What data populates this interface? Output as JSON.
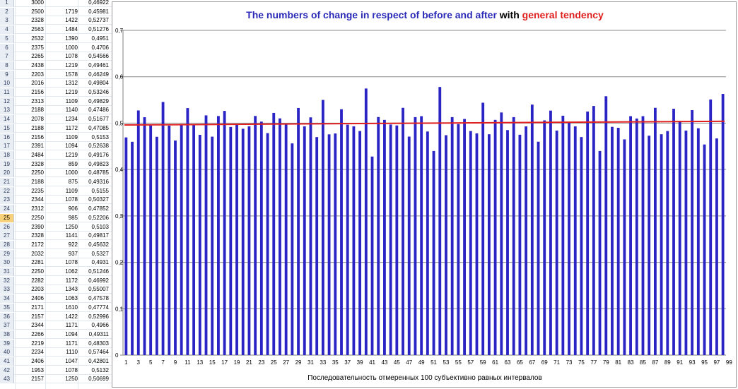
{
  "sheet": {
    "selected_row": "25",
    "rows": [
      {
        "n": "1",
        "a": "3000",
        "b": "",
        "c": "0,46922"
      },
      {
        "n": "2",
        "a": "2500",
        "b": "1719",
        "c": "0,45981"
      },
      {
        "n": "3",
        "a": "2328",
        "b": "1422",
        "c": "0,52737"
      },
      {
        "n": "4",
        "a": "2563",
        "b": "1484",
        "c": "0,51276"
      },
      {
        "n": "5",
        "a": "2532",
        "b": "1390",
        "c": "0,4951"
      },
      {
        "n": "6",
        "a": "2375",
        "b": "1000",
        "c": "0,4706"
      },
      {
        "n": "7",
        "a": "2265",
        "b": "1078",
        "c": "0,54566"
      },
      {
        "n": "8",
        "a": "2438",
        "b": "1219",
        "c": "0,49461"
      },
      {
        "n": "9",
        "a": "2203",
        "b": "1578",
        "c": "0,46249"
      },
      {
        "n": "10",
        "a": "2016",
        "b": "1312",
        "c": "0,49804"
      },
      {
        "n": "11",
        "a": "2156",
        "b": "1219",
        "c": "0,53246"
      },
      {
        "n": "12",
        "a": "2313",
        "b": "1109",
        "c": "0,49829"
      },
      {
        "n": "13",
        "a": "2188",
        "b": "1140",
        "c": "0,47486"
      },
      {
        "n": "14",
        "a": "2078",
        "b": "1234",
        "c": "0,51677"
      },
      {
        "n": "15",
        "a": "2188",
        "b": "1172",
        "c": "0,47085"
      },
      {
        "n": "16",
        "a": "2156",
        "b": "1109",
        "c": "0,5153"
      },
      {
        "n": "17",
        "a": "2391",
        "b": "1094",
        "c": "0,52638"
      },
      {
        "n": "18",
        "a": "2484",
        "b": "1219",
        "c": "0,49176"
      },
      {
        "n": "19",
        "a": "2328",
        "b": "859",
        "c": "0,49823"
      },
      {
        "n": "20",
        "a": "2250",
        "b": "1000",
        "c": "0,48785"
      },
      {
        "n": "21",
        "a": "2188",
        "b": "875",
        "c": "0,49316"
      },
      {
        "n": "22",
        "a": "2235",
        "b": "1109",
        "c": "0,5155"
      },
      {
        "n": "23",
        "a": "2344",
        "b": "1078",
        "c": "0,50327"
      },
      {
        "n": "24",
        "a": "2312",
        "b": "906",
        "c": "0,47852"
      },
      {
        "n": "25",
        "a": "2250",
        "b": "985",
        "c": "0,52206"
      },
      {
        "n": "26",
        "a": "2390",
        "b": "1250",
        "c": "0,5103"
      },
      {
        "n": "27",
        "a": "2328",
        "b": "1141",
        "c": "0,49817"
      },
      {
        "n": "28",
        "a": "2172",
        "b": "922",
        "c": "0,45632"
      },
      {
        "n": "29",
        "a": "2032",
        "b": "937",
        "c": "0,5327"
      },
      {
        "n": "30",
        "a": "2281",
        "b": "1078",
        "c": "0,4931"
      },
      {
        "n": "31",
        "a": "2250",
        "b": "1062",
        "c": "0,51246"
      },
      {
        "n": "32",
        "a": "2282",
        "b": "1172",
        "c": "0,46992"
      },
      {
        "n": "33",
        "a": "2203",
        "b": "1343",
        "c": "0,55007"
      },
      {
        "n": "34",
        "a": "2406",
        "b": "1063",
        "c": "0,47578"
      },
      {
        "n": "35",
        "a": "2171",
        "b": "1610",
        "c": "0,47774"
      },
      {
        "n": "36",
        "a": "2157",
        "b": "1422",
        "c": "0,52996"
      },
      {
        "n": "37",
        "a": "2344",
        "b": "1171",
        "c": "0,4966"
      },
      {
        "n": "38",
        "a": "2266",
        "b": "1094",
        "c": "0,49311"
      },
      {
        "n": "39",
        "a": "2219",
        "b": "1171",
        "c": "0,48303"
      },
      {
        "n": "40",
        "a": "2234",
        "b": "1110",
        "c": "0,57464"
      },
      {
        "n": "41",
        "a": "2406",
        "b": "1047",
        "c": "0,42801"
      },
      {
        "n": "42",
        "a": "1953",
        "b": "1078",
        "c": "0,5132"
      },
      {
        "n": "43",
        "a": "2157",
        "b": "1250",
        "c": "0,50699"
      }
    ]
  },
  "chart_data": {
    "type": "bar",
    "title_parts": [
      {
        "text": "The numbers of change in respect of before and after",
        "color": "#2b2bb8"
      },
      {
        "text": "with",
        "color": "#000000"
      },
      {
        "text": "general tendency",
        "color": "#e02020"
      }
    ],
    "xlabel": "Последовательность  отмеренных  100 субъективно  равных  интервалов",
    "ylabel": "",
    "ylim": [
      0,
      0.7
    ],
    "y_ticks": [
      "0",
      "0,1",
      "0,2",
      "0,3",
      "0,4",
      "0,5",
      "0,6",
      "0,7"
    ],
    "x_tick_labels": [
      "1",
      "3",
      "5",
      "7",
      "9",
      "11",
      "13",
      "15",
      "17",
      "19",
      "21",
      "23",
      "25",
      "27",
      "29",
      "31",
      "33",
      "35",
      "37",
      "39",
      "41",
      "43",
      "45",
      "47",
      "49",
      "51",
      "53",
      "55",
      "57",
      "59",
      "61",
      "63",
      "65",
      "67",
      "69",
      "71",
      "73",
      "75",
      "77",
      "79",
      "81",
      "83",
      "85",
      "87",
      "89",
      "91",
      "93",
      "95",
      "97",
      "99"
    ],
    "grid": true,
    "legend": "none",
    "bar_color": "#2b24c4",
    "trend_color": "#e02020",
    "trend_line": [
      0.496,
      0.504
    ],
    "categories": [
      1,
      2,
      3,
      4,
      5,
      6,
      7,
      8,
      9,
      10,
      11,
      12,
      13,
      14,
      15,
      16,
      17,
      18,
      19,
      20,
      21,
      22,
      23,
      24,
      25,
      26,
      27,
      28,
      29,
      30,
      31,
      32,
      33,
      34,
      35,
      36,
      37,
      38,
      39,
      40,
      41,
      42,
      43,
      44,
      45,
      46,
      47,
      48,
      49,
      50,
      51,
      52,
      53,
      54,
      55,
      56,
      57,
      58,
      59,
      60,
      61,
      62,
      63,
      64,
      65,
      66,
      67,
      68,
      69,
      70,
      71,
      72,
      73,
      74,
      75,
      76,
      77,
      78,
      79,
      80,
      81,
      82,
      83,
      84,
      85,
      86,
      87,
      88,
      89,
      90,
      91,
      92,
      93,
      94,
      95,
      96,
      97,
      98
    ],
    "values": [
      0.46922,
      0.45981,
      0.52737,
      0.51276,
      0.4951,
      0.4706,
      0.54566,
      0.49461,
      0.46249,
      0.49804,
      0.53246,
      0.49829,
      0.47486,
      0.51677,
      0.47085,
      0.5153,
      0.52638,
      0.49176,
      0.49823,
      0.48785,
      0.49316,
      0.5155,
      0.50327,
      0.47852,
      0.52206,
      0.5103,
      0.49817,
      0.45632,
      0.5327,
      0.4931,
      0.51246,
      0.46992,
      0.55007,
      0.47578,
      0.47774,
      0.52996,
      0.4966,
      0.49311,
      0.48303,
      0.57464,
      0.42801,
      0.5132,
      0.50699,
      0.497,
      0.495,
      0.533,
      0.471,
      0.513,
      0.515,
      0.482,
      0.44,
      0.578,
      0.474,
      0.513,
      0.498,
      0.509,
      0.483,
      0.478,
      0.544,
      0.476,
      0.507,
      0.523,
      0.485,
      0.513,
      0.475,
      0.493,
      0.54,
      0.46,
      0.506,
      0.527,
      0.484,
      0.516,
      0.503,
      0.493,
      0.47,
      0.525,
      0.537,
      0.44,
      0.558,
      0.492,
      0.49,
      0.465,
      0.515,
      0.51,
      0.515,
      0.473,
      0.533,
      0.476,
      0.483,
      0.531,
      0.505,
      0.484,
      0.528,
      0.489,
      0.454,
      0.551,
      0.467,
      0.563
    ]
  }
}
